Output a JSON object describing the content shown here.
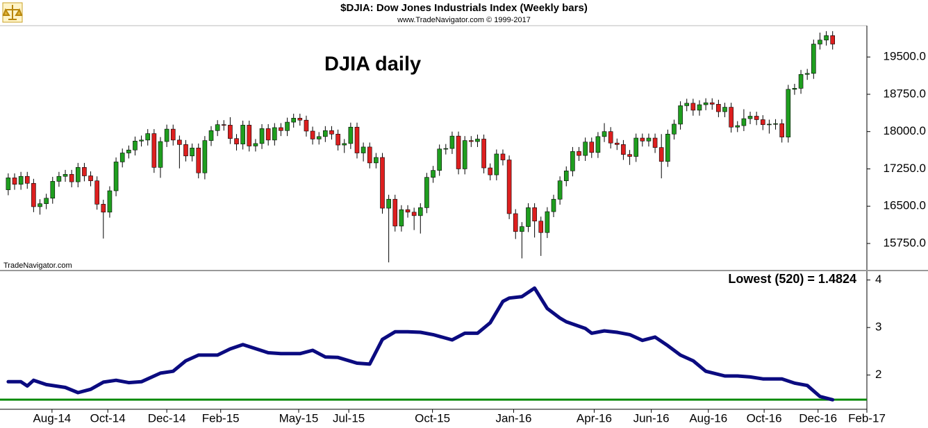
{
  "chart_data": [
    {
      "type": "candlestick",
      "title": "$DJIA:  Dow Jones Industrials Index  (Weekly bars)",
      "subtitle": "www.TradeNavigator.com © 1999-2017",
      "annotation": "DJIA daily",
      "watermark": "TradeNavigator.com",
      "up_color": "#1f9e1f",
      "down_color": "#dd1f1f",
      "xlim": [
        -1.3,
        135.4
      ],
      "ylim": [
        15220,
        20130
      ],
      "yticks": [
        {
          "value": 15750,
          "label": "15750.0"
        },
        {
          "value": 16500,
          "label": "16500.0"
        },
        {
          "value": 17250,
          "label": "17250.0"
        },
        {
          "value": 18000,
          "label": "18000.0"
        },
        {
          "value": 18750,
          "label": "18750.0"
        },
        {
          "value": 19500,
          "label": "19500.0"
        }
      ],
      "x": [
        0,
        1,
        2,
        3,
        4,
        5,
        6,
        7,
        8,
        9,
        10,
        11,
        12,
        13,
        14,
        15,
        16,
        17,
        18,
        19,
        20,
        21,
        22,
        23,
        24,
        25,
        26,
        27,
        28,
        29,
        30,
        31,
        32,
        33,
        34,
        35,
        36,
        37,
        38,
        39,
        40,
        41,
        42,
        43,
        44,
        45,
        46,
        47,
        48,
        49,
        50,
        51,
        52,
        53,
        54,
        55,
        56,
        57,
        58,
        59,
        60,
        61,
        62,
        63,
        64,
        65,
        66,
        67,
        68,
        69,
        70,
        71,
        72,
        73,
        74,
        75,
        76,
        77,
        78,
        79,
        80,
        81,
        82,
        83,
        84,
        85,
        86,
        87,
        88,
        89,
        90,
        91,
        92,
        93,
        94,
        95,
        96,
        97,
        98,
        99,
        100,
        101,
        102,
        103,
        104,
        105,
        106,
        107,
        108,
        109,
        110,
        111,
        112,
        113,
        114,
        115,
        116,
        117,
        118,
        119,
        120,
        121,
        122,
        123,
        124,
        125,
        126,
        127,
        128,
        129,
        130
      ],
      "open": [
        16830,
        17070,
        16940,
        17100,
        16960,
        16490,
        16550,
        16660,
        17000,
        17100,
        17140,
        16990,
        17280,
        17110,
        17010,
        16540,
        16380,
        16810,
        17390,
        17570,
        17630,
        17810,
        17830,
        17960,
        17280,
        17800,
        18050,
        17830,
        17740,
        17510,
        17670,
        17170,
        17820,
        18020,
        18140,
        18130,
        17860,
        17750,
        18130,
        17710,
        17760,
        18060,
        17830,
        18080,
        18020,
        18190,
        18270,
        18230,
        18010,
        17850,
        17900,
        18020,
        17950,
        17730,
        17760,
        18090,
        17570,
        17690,
        17370,
        17480,
        16460,
        16640,
        16100,
        16430,
        16380,
        16310,
        16470,
        17080,
        17220,
        17650,
        17660,
        17910,
        17250,
        17820,
        17800,
        17850,
        17270,
        17130,
        17550,
        17430,
        16350,
        15990,
        16090,
        16470,
        16200,
        15970,
        16390,
        16640,
        17010,
        17210,
        17600,
        17520,
        17790,
        17580,
        17900,
        18000,
        17770,
        17740,
        17540,
        17500,
        17870,
        17810,
        17870,
        17680,
        17400,
        17950,
        18150,
        18520,
        18570,
        18430,
        18540,
        18580,
        18550,
        18400,
        18490,
        18090,
        18120,
        18260,
        18310,
        18240,
        18140,
        18150,
        18160,
        17890,
        18850,
        18870,
        19150,
        19170,
        19760,
        19840,
        19930
      ],
      "high": [
        17160,
        17160,
        17190,
        17190,
        17050,
        16640,
        16750,
        17090,
        17190,
        17230,
        17230,
        17370,
        17370,
        17200,
        17100,
        16630,
        16900,
        17480,
        17660,
        17720,
        17900,
        17920,
        18050,
        18050,
        17890,
        18140,
        18140,
        17920,
        17830,
        17760,
        17760,
        17910,
        18110,
        18230,
        18230,
        18290,
        17950,
        18220,
        18220,
        17850,
        18150,
        18150,
        18170,
        18170,
        18280,
        18360,
        18360,
        18320,
        18100,
        17990,
        18110,
        18110,
        18040,
        17850,
        18180,
        18180,
        17780,
        17780,
        17570,
        17570,
        16730,
        16730,
        16520,
        16520,
        16470,
        16560,
        17170,
        17310,
        17740,
        17750,
        18000,
        18000,
        17910,
        17910,
        17940,
        17940,
        17360,
        17640,
        17640,
        17520,
        16440,
        16180,
        16560,
        16560,
        16290,
        16480,
        16730,
        17100,
        17300,
        17690,
        17690,
        17880,
        17880,
        17990,
        18170,
        18090,
        17860,
        17830,
        17630,
        17960,
        17960,
        17960,
        17960,
        17950,
        18040,
        18240,
        18610,
        18660,
        18660,
        18630,
        18670,
        18670,
        18640,
        18580,
        18580,
        18210,
        18450,
        18400,
        18400,
        18330,
        18240,
        18250,
        18250,
        18940,
        18960,
        19240,
        19260,
        19850,
        19990,
        20020,
        20020
      ],
      "low": [
        16720,
        16830,
        16830,
        16850,
        16380,
        16330,
        16440,
        16550,
        16890,
        16990,
        16880,
        16880,
        17000,
        16900,
        16430,
        15850,
        16270,
        16700,
        17280,
        17460,
        17520,
        17700,
        17720,
        17170,
        17070,
        17690,
        17720,
        17260,
        17400,
        17400,
        17060,
        17040,
        17710,
        17910,
        18020,
        17750,
        17620,
        17640,
        17600,
        17600,
        17650,
        17720,
        17720,
        17910,
        17910,
        18080,
        18120,
        17900,
        17740,
        17740,
        17790,
        17840,
        17620,
        17570,
        17650,
        17460,
        17400,
        17260,
        17260,
        16350,
        15370,
        15990,
        15990,
        16270,
        16020,
        15950,
        16360,
        16970,
        17110,
        17540,
        17550,
        17140,
        17140,
        17690,
        17690,
        17160,
        17020,
        17020,
        17320,
        16240,
        15840,
        15450,
        15980,
        15870,
        15500,
        15860,
        16280,
        16530,
        16900,
        17100,
        17410,
        17410,
        17470,
        17470,
        17790,
        17660,
        17630,
        17430,
        17330,
        17390,
        17700,
        17700,
        17570,
        17060,
        17290,
        17840,
        18040,
        18410,
        18320,
        18320,
        18430,
        18440,
        18290,
        18290,
        17980,
        17990,
        18010,
        18150,
        18130,
        18030,
        17960,
        18040,
        17780,
        17780,
        18740,
        18760,
        19040,
        19060,
        19650,
        19730,
        19650
      ],
      "close": [
        17070,
        16940,
        17100,
        16960,
        16490,
        16550,
        16660,
        17000,
        17100,
        17140,
        16990,
        17280,
        17110,
        17010,
        16540,
        16380,
        16810,
        17390,
        17570,
        17630,
        17810,
        17830,
        17960,
        17280,
        17800,
        18050,
        17830,
        17740,
        17510,
        17670,
        17170,
        17820,
        18020,
        18140,
        18130,
        17860,
        17750,
        18130,
        17710,
        17760,
        18060,
        17830,
        18080,
        18020,
        18190,
        18270,
        18230,
        18010,
        17850,
        17900,
        18020,
        17950,
        17730,
        17760,
        18090,
        17570,
        17690,
        17370,
        17480,
        16460,
        16640,
        16100,
        16430,
        16380,
        16310,
        16470,
        17080,
        17220,
        17650,
        17660,
        17910,
        17250,
        17820,
        17800,
        17850,
        17270,
        17130,
        17550,
        17430,
        16350,
        15990,
        16090,
        16470,
        16200,
        15970,
        16390,
        16640,
        17010,
        17210,
        17600,
        17520,
        17790,
        17580,
        17900,
        18000,
        17770,
        17740,
        17540,
        17500,
        17870,
        17810,
        17870,
        17680,
        17400,
        17950,
        18150,
        18520,
        18570,
        18430,
        18540,
        18580,
        18550,
        18400,
        18490,
        18090,
        18120,
        18260,
        18310,
        18240,
        18140,
        18150,
        18160,
        17890,
        18850,
        18870,
        19150,
        19170,
        19760,
        19840,
        19930,
        19760
      ]
    },
    {
      "type": "line",
      "xlim": [
        -1.3,
        135.4
      ],
      "ylim": [
        1.28,
        4.17
      ],
      "yticks": [
        2,
        3,
        4
      ],
      "xticks": [
        {
          "value": 6.9,
          "label": "Aug-14"
        },
        {
          "value": 15.7,
          "label": "Oct-14"
        },
        {
          "value": 25,
          "label": "Dec-14"
        },
        {
          "value": 33.5,
          "label": "Feb-15"
        },
        {
          "value": 45.8,
          "label": "May-15"
        },
        {
          "value": 53.7,
          "label": "Jul-15"
        },
        {
          "value": 66.9,
          "label": "Oct-15"
        },
        {
          "value": 79.7,
          "label": "Jan-16"
        },
        {
          "value": 92.4,
          "label": "Apr-16"
        },
        {
          "value": 101.4,
          "label": "Jun-16"
        },
        {
          "value": 110.4,
          "label": "Aug-16"
        },
        {
          "value": 119.2,
          "label": "Oct-16"
        },
        {
          "value": 127.7,
          "label": "Dec-16"
        },
        {
          "value": 135.4,
          "label": "Feb-17"
        }
      ],
      "series": [
        {
          "color": "#0b0b80",
          "x": [
            0,
            2,
            3,
            4,
            6,
            9,
            11,
            13,
            15,
            17,
            19,
            21,
            24,
            26,
            28,
            30,
            33,
            35,
            37,
            41,
            43,
            46,
            48,
            50,
            52,
            55,
            57,
            59,
            61,
            63,
            65,
            67,
            70,
            72,
            74,
            76,
            78,
            79,
            81,
            83,
            85,
            87,
            88,
            91,
            92,
            94,
            96,
            98,
            100,
            102,
            104,
            106,
            108,
            110,
            113,
            115,
            117,
            119,
            122,
            124,
            126,
            128,
            130
          ],
          "values": [
            1.86,
            1.86,
            1.77,
            1.89,
            1.8,
            1.74,
            1.63,
            1.7,
            1.85,
            1.89,
            1.84,
            1.86,
            2.04,
            2.08,
            2.3,
            2.42,
            2.42,
            2.55,
            2.64,
            2.47,
            2.45,
            2.45,
            2.52,
            2.38,
            2.37,
            2.25,
            2.23,
            2.75,
            2.91,
            2.91,
            2.9,
            2.85,
            2.74,
            2.88,
            2.88,
            3.1,
            3.55,
            3.62,
            3.65,
            3.83,
            3.4,
            3.2,
            3.12,
            2.98,
            2.88,
            2.93,
            2.9,
            2.85,
            2.73,
            2.8,
            2.62,
            2.42,
            2.3,
            2.08,
            1.98,
            1.98,
            1.96,
            1.92,
            1.92,
            1.83,
            1.78,
            1.55,
            1.48
          ]
        }
      ],
      "threshold": 1.4824,
      "threshold_label": "Lowest (520) = 1.4824",
      "threshold_color": "#0a8a0a"
    }
  ]
}
